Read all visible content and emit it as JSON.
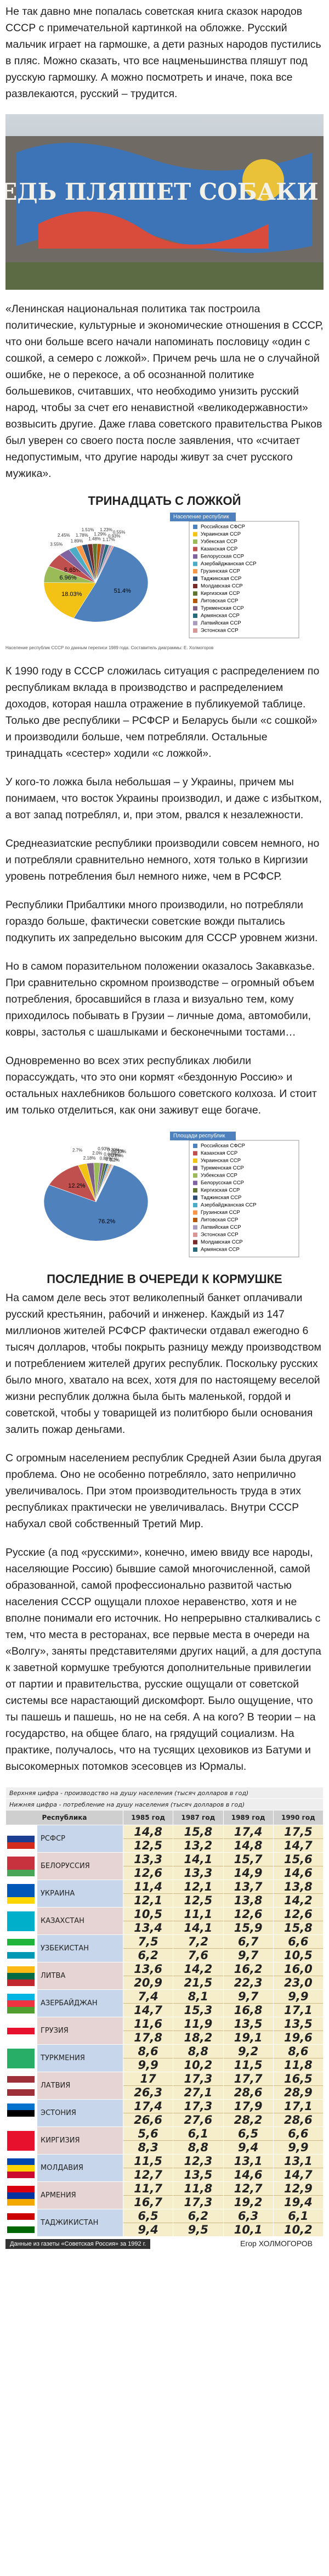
{
  "article": {
    "p1": "Не так давно мне попалась советская книга сказок народов СССР с примечательной картинкой на обложке. Русский мальчик играет на гармошке, а дети разных народов пустились в пляс. Можно сказать, что все нацменьшинства пляшут под русскую гармошку. А можно посмотреть и иначе, пока все развлекаются, русский – трудится.",
    "photo_text": "МЕДВЕДЬ ПЛЯШЕТ СОБАКИ ЛАЮТ",
    "p2": "«Ленинская национальная политика так построила политические, культурные и экономические отношения в СССР, что они больше всего начали напоминать пословицу «один с сошкой, а семеро с ложкой». Причем речь шла не о случайной ошибке, не о перекосе, а об осознанной политике большевиков, считавших, что необходимо унизить русский народ, чтобы за счет его ненавистной «великодержавности» возвысить другие. Даже глава советского правительства Рыков был уверен со своего поста после заявления, что «считает недопустимым, что другие народы живут за счет русского мужика».",
    "title1": "ТРИНАДЦАТЬ С ЛОЖКОЙ",
    "caption1": "Население республик СССР по данным переписи 1989 года. Составитель диаграммы: Е. Холмогоров",
    "p3": "К 1990 году в СССР сложилась ситуация с распределением по республикам вклада в производство и распределением доходов, которая нашла отражение в публикуемой таблице. Только две республики – РСФСР и Беларусь были «с сошкой» и производили больше, чем потребляли. Остальные тринадцать «сестер» ходили «с ложкой».",
    "p4": "У кого-то ложка была небольшая – у Украины, причем мы понимаем, что восток Украины производил, и даже с избытком, а вот запад потреблял, и, при этом, рвался к незалежности.",
    "p5": "Среднеазиатские республики производили совсем немного, но и потребляли сравнительно немного, хотя только в Киргизии уровень потребления был немного ниже, чем в РСФСР.",
    "p6": "Республики Прибалтики много производили, но потребляли гораздо больше, фактически советские вожди пытались подкупить их запредельно высоким для СССР уровнем жизни.",
    "p7": "Но в самом поразительном положении оказалось Закавказье. При сравнительно скромном производстве – огромный объем потребления, бросавшийся в глаза и визуально тем, кому приходилось побывать в Грузии – личные дома, автомобили, ковры, застолья с шашлыками и бесконечными тостами…",
    "p8": "Одновременно во всех этих республиках любили порассуждать, что это они кормят «бездонную Россию» и остальных нахлебников большого советского колхоза. И стоит им только отделиться, как они заживут еще богаче.",
    "title2": "ПОСЛЕДНИЕ В ОЧЕРЕДИ К КОРМУШКЕ",
    "p9": "На самом деле весь этот великолепный банкет оплачивали русский крестьянин, рабочий и инженер. Каждый из 147 миллионов жителей РСФСР фактически отдавал ежегодно 6 тысяч долларов, чтобы покрыть разницу между производством и потреблением жителей других республик. Поскольку русских было много, хватало на всех, хотя для по настоящему веселой жизни республик должна была быть маленькой, гордой и советской, чтобы у товарищей из политбюро были основания залить пожар деньгами.",
    "p10": "С огромным населением республик Средней Азии была другая проблема. Оно не особенно потребляло, зато неприлично увеличивалось. При этом производительность труда в этих республиках практически не увеличивалась. Внутри СССР набухал свой собственный Третий Мир.",
    "p11": "Русские (а под «русскими», конечно, имею ввиду все народы, населяющие Россию) бывшие самой многочисленной, самой образованной, самой профессионально развитой частью населения СССР ощущали плохое неравенство, хотя и не вполне понимали его источник. Но непрерывно сталкивались с тем, что места в ресторанах, все первые места в очереди на «Волгу», заняты представителями других наций, а для доступа к заветной кормушке требуются дополнительные привилегии от партии и правительства, русские ощущали от советской системы все нарастающий дискомфорт. Было ощущение, что ты пашешь и пашешь, но не на себя. А на кого? В теории – на государство, на общее благо, на грядущий социализм. На практике, получалось, что на тусящих цеховиков из Батуми и высокомерных потомков эсесовцев из Юрмалы."
  },
  "chart_data": [
    {
      "type": "pie",
      "title": "Население республик",
      "categories": [
        "Российская СФСР",
        "Украинская ССР",
        "Узбекская ССР",
        "Казахская ССР",
        "Белорусская ССР",
        "Азербайджанская ССР",
        "Грузинская ССР",
        "Таджикская ССР",
        "Молдавская ССР",
        "Киргизская ССР",
        "Литовская ССР",
        "Туркменская ССР",
        "Армянская ССР",
        "Латвийская ССР",
        "Эстонская ССР"
      ],
      "values": [
        51.4,
        18.03,
        6.96,
        5.65,
        3.55,
        2.45,
        1.89,
        1.78,
        1.51,
        1.48,
        1.29,
        1.23,
        1.17,
        0.93,
        0.55
      ],
      "value_labels": [
        "51.4%",
        "18.03%",
        "6.96%",
        "5.65%",
        "3.55%",
        "2.45%",
        "1.89%",
        "1.78%",
        "1.51%",
        "1.48%",
        "1.29%",
        "1.23%",
        "1.17%",
        "0.93%",
        "0.55%"
      ],
      "colors": [
        "#4f81bd",
        "#f2c314",
        "#9bbb59",
        "#c0504d",
        "#8064a2",
        "#4bacc6",
        "#f79646",
        "#2c4d75",
        "#772c2a",
        "#5f7530",
        "#b65708",
        "#7f6084",
        "#276a7c",
        "#a99bbd",
        "#d99694"
      ]
    },
    {
      "type": "pie",
      "title": "Площади республик",
      "categories": [
        "Российская СФСР",
        "Казахская ССР",
        "Украинская ССР",
        "Туркменская ССР",
        "Узбекская ССР",
        "Белорусская ССР",
        "Киргизская ССР",
        "Таджикская ССР",
        "Азербайджанская ССР",
        "Грузинская ССР",
        "Литовская ССР",
        "Латвийская ССР",
        "Эстонская ССР",
        "Молдавская ССР",
        "Армянская ССР"
      ],
      "values": [
        76.2,
        12.2,
        2.7,
        2.18,
        2.0,
        0.93,
        0.89,
        0.64,
        0.39,
        0.31,
        0.29,
        0.29,
        0.2,
        0.15,
        0.13
      ],
      "value_labels": [
        "76.2%",
        "12.2%",
        "2.7%",
        "2.18%",
        "2.0%",
        "0.93%",
        "0.89%",
        "0.64%",
        "0.39%",
        "0.31%",
        "0.29%",
        "0.29%",
        "0.2%",
        "0.15%",
        "0.13%"
      ],
      "colors": [
        "#4f81bd",
        "#c0504d",
        "#f2c314",
        "#7f6084",
        "#9bbb59",
        "#8064a2",
        "#5f7530",
        "#2c4d75",
        "#4bacc6",
        "#f79646",
        "#b65708",
        "#a99bbd",
        "#d99694",
        "#772c2a",
        "#276a7c"
      ]
    }
  ],
  "table": {
    "legend_top": "Верхняя цифра - производство на душу населения (тысяч долларов в год)",
    "legend_bottom": "Нижняя цифра - потребление на душу населения (тысяч долларов в год)",
    "header": [
      "Республика",
      "1985 год",
      "1987 год",
      "1989 год",
      "1990 год"
    ],
    "rows": [
      {
        "name": "РСФСР",
        "top": [
          "14,8",
          "15,8",
          "17,4",
          "17,5"
        ],
        "bottom": [
          "12,5",
          "13,2",
          "14,8",
          "14,7"
        ]
      },
      {
        "name": "БЕЛОРУССИЯ",
        "top": [
          "13,3",
          "14,1",
          "15,7",
          "15,6"
        ],
        "bottom": [
          "12,6",
          "13,3",
          "14,9",
          "14,6"
        ]
      },
      {
        "name": "УКРАИНА",
        "top": [
          "11,4",
          "12,1",
          "13,7",
          "13,8"
        ],
        "bottom": [
          "12,1",
          "12,5",
          "13,8",
          "14,2"
        ]
      },
      {
        "name": "КАЗАХСТАН",
        "top": [
          "10,5",
          "11,1",
          "12,6",
          "12,6"
        ],
        "bottom": [
          "13,4",
          "14,1",
          "15,9",
          "15,8"
        ]
      },
      {
        "name": "УЗБЕКИСТАН",
        "top": [
          "7,5",
          "7,2",
          "6,7",
          "6,6"
        ],
        "bottom": [
          "6,2",
          "7,6",
          "9,7",
          "10,5"
        ]
      },
      {
        "name": "ЛИТВА",
        "top": [
          "13,6",
          "14,2",
          "16,2",
          "16,0"
        ],
        "bottom": [
          "20,9",
          "21,5",
          "22,3",
          "23,0"
        ]
      },
      {
        "name": "АЗЕРБАЙДЖАН",
        "top": [
          "7,4",
          "8,1",
          "9,7",
          "9,9"
        ],
        "bottom": [
          "14,7",
          "15,3",
          "16,8",
          "17,1"
        ]
      },
      {
        "name": "ГРУЗИЯ",
        "top": [
          "11,6",
          "11,9",
          "13,5",
          "13,5"
        ],
        "bottom": [
          "17,8",
          "18,2",
          "19,1",
          "19,6"
        ]
      },
      {
        "name": "ТУРКМЕНИЯ",
        "top": [
          "8,6",
          "8,8",
          "9,2",
          "8,6"
        ],
        "bottom": [
          "9,9",
          "10,2",
          "11,5",
          "11,8"
        ]
      },
      {
        "name": "ЛАТВИЯ",
        "top": [
          "17",
          "17,3",
          "17,7",
          "16,5"
        ],
        "bottom": [
          "26,3",
          "27,1",
          "28,6",
          "28,9"
        ]
      },
      {
        "name": "ЭСТОНИЯ",
        "top": [
          "17,4",
          "17,3",
          "17,9",
          "17,1"
        ],
        "bottom": [
          "26,6",
          "27,6",
          "28,2",
          "28,6"
        ]
      },
      {
        "name": "КИРГИЗИЯ",
        "top": [
          "5,6",
          "6,1",
          "6,5",
          "6,6"
        ],
        "bottom": [
          "8,3",
          "8,8",
          "9,4",
          "9,9"
        ]
      },
      {
        "name": "МОЛДАВИЯ",
        "top": [
          "11,5",
          "12,3",
          "13,1",
          "13,1"
        ],
        "bottom": [
          "12,7",
          "13,5",
          "14,6",
          "14,7"
        ]
      },
      {
        "name": "АРМЕНИЯ",
        "top": [
          "11,7",
          "11,8",
          "12,7",
          "12,9"
        ],
        "bottom": [
          "16,7",
          "17,3",
          "19,2",
          "19,4"
        ]
      },
      {
        "name": "ТАДЖИКИСТАН",
        "top": [
          "6,5",
          "6,2",
          "6,3",
          "6,1"
        ],
        "bottom": [
          "9,4",
          "9,5",
          "10,1",
          "10,2"
        ]
      }
    ],
    "source": "Данные из газеты «Советская Россия» за 1992 г.",
    "author": "Егор ХОЛМОГОРОВ"
  }
}
